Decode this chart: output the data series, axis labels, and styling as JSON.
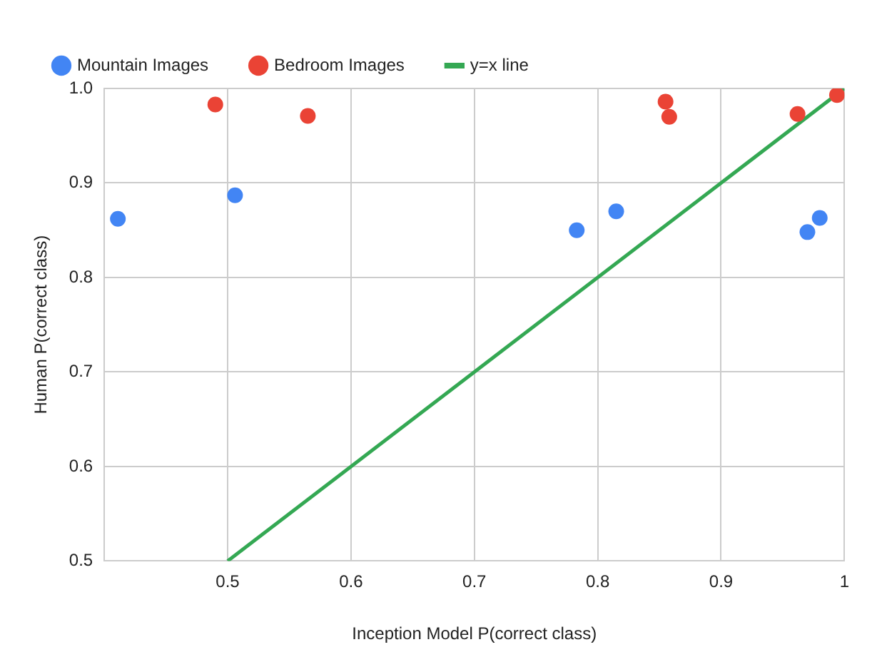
{
  "chart_data": {
    "type": "scatter",
    "xlabel": "Inception Model P(correct class)",
    "ylabel": "Human P(correct class)",
    "xlim": [
      0.4,
      1.0
    ],
    "xticks": [
      0.5,
      0.6,
      0.7,
      0.8,
      0.9,
      1
    ],
    "ylim": [
      0.5,
      1.0
    ],
    "yticks": [
      0.5,
      0.6,
      0.7,
      0.8,
      0.9,
      {
        "value": 1.0,
        "label": "1.0"
      }
    ],
    "grid": true,
    "legend": "top",
    "series": [
      {
        "name": "Mountain Images",
        "marker": "circle",
        "color": "#4285f4",
        "x": [
          0.411,
          0.506,
          0.783,
          0.815,
          0.97,
          0.98
        ],
        "values": [
          0.862,
          0.887,
          0.85,
          0.87,
          0.848,
          0.863
        ]
      },
      {
        "name": "Bedroom Images",
        "marker": "circle",
        "color": "#ea4335",
        "x": [
          0.49,
          0.565,
          0.855,
          0.858,
          0.962,
          0.994
        ],
        "values": [
          0.983,
          0.971,
          0.986,
          0.97,
          0.973,
          0.993
        ]
      },
      {
        "name": "y=x line",
        "type": "line",
        "marker": "none",
        "color": "#34a853",
        "x": [
          0.5,
          1.0
        ],
        "values": [
          0.5,
          1.0
        ]
      }
    ]
  }
}
